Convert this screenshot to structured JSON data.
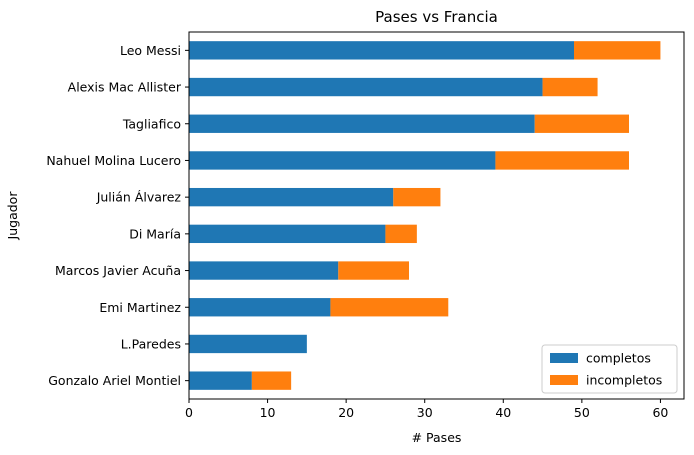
{
  "chart_data": {
    "type": "bar",
    "orientation": "horizontal",
    "stacked": true,
    "title": "Pases vs Francia",
    "xlabel": "# Pases",
    "ylabel": "Jugador",
    "xlim": [
      0,
      63
    ],
    "xticks": [
      0,
      10,
      20,
      30,
      40,
      50,
      60
    ],
    "grid": false,
    "legend_position": "lower-right",
    "categories": [
      "Gonzalo Ariel Montiel",
      "L.Paredes",
      "Emi Martinez",
      "Marcos Javier Acuña",
      "Di María",
      "Julián Álvarez",
      "Nahuel Molina Lucero",
      "Tagliafico",
      "Alexis Mac Allister",
      "Leo Messi"
    ],
    "series": [
      {
        "name": "completos",
        "color": "#1f77b4",
        "values": [
          8,
          15,
          18,
          19,
          25,
          26,
          39,
          44,
          45,
          49
        ]
      },
      {
        "name": "incompletos",
        "color": "#ff7f0e",
        "values": [
          5,
          0,
          15,
          9,
          4,
          6,
          17,
          12,
          7,
          11
        ]
      }
    ]
  }
}
